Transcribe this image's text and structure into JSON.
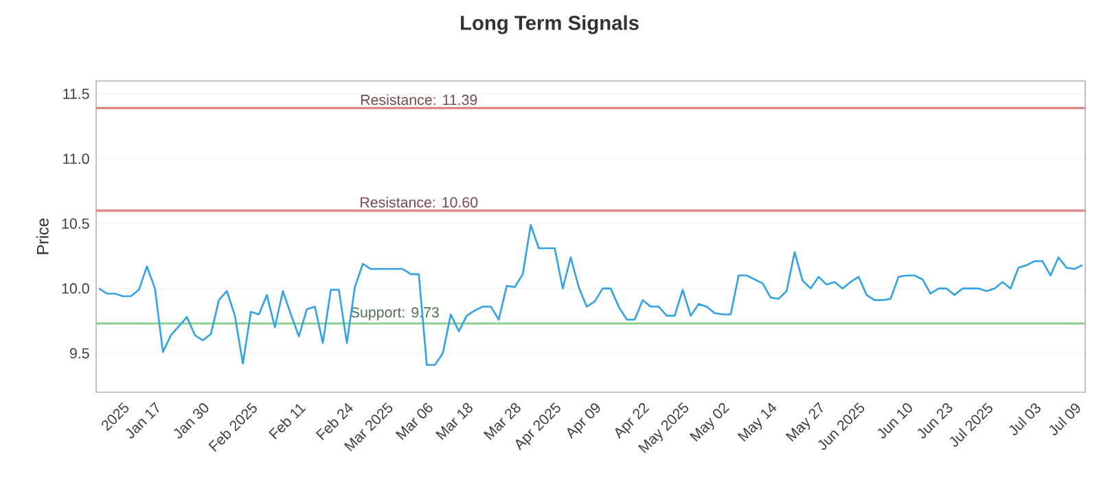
{
  "chart_data": {
    "type": "line",
    "title": "Long Term Signals",
    "ylabel": "Price",
    "categories": [
      null,
      null,
      null,
      "2025",
      null,
      null,
      null,
      "Jan 17",
      null,
      null,
      null,
      null,
      null,
      "Jan 30",
      null,
      null,
      null,
      null,
      null,
      "Feb 2025",
      null,
      null,
      null,
      null,
      null,
      "Feb 11",
      null,
      null,
      null,
      null,
      null,
      "Feb 24",
      null,
      null,
      null,
      null,
      "Mar 2025",
      null,
      null,
      null,
      null,
      "Mar 06",
      null,
      null,
      null,
      null,
      "Mar 18",
      null,
      null,
      null,
      null,
      null,
      "Mar 28",
      null,
      null,
      null,
      null,
      "Apr 2025",
      null,
      null,
      null,
      null,
      "Apr 09",
      null,
      null,
      null,
      null,
      null,
      "Apr 22",
      null,
      null,
      null,
      null,
      "May 2025",
      null,
      null,
      null,
      null,
      "May 02",
      null,
      null,
      null,
      null,
      null,
      "May 14",
      null,
      null,
      null,
      null,
      null,
      "May 27",
      null,
      null,
      null,
      null,
      "Jun 2025",
      null,
      null,
      null,
      null,
      null,
      "Jun 10",
      null,
      null,
      null,
      null,
      "Jun 23",
      null,
      null,
      null,
      null,
      "Jul 2025",
      null,
      null,
      null,
      null,
      null,
      "Jul 03",
      null,
      null,
      null,
      null,
      "Jul 09",
      null
    ],
    "series": [
      {
        "color": "#35a2e6",
        "values": [
          10.0,
          9.96,
          9.96,
          9.94,
          9.94,
          9.99,
          10.17,
          10.0,
          9.51,
          9.64,
          9.71,
          9.78,
          9.64,
          9.6,
          9.65,
          9.91,
          9.98,
          9.79,
          9.42,
          9.82,
          9.8,
          9.95,
          9.7,
          9.98,
          9.8,
          9.63,
          9.84,
          9.86,
          9.58,
          9.99,
          9.99,
          9.58,
          10.01,
          10.19,
          10.15,
          10.15,
          10.15,
          10.15,
          10.15,
          10.11,
          10.11,
          9.41,
          9.41,
          9.5,
          9.8,
          9.67,
          9.79,
          9.83,
          9.86,
          9.86,
          9.76,
          10.02,
          10.01,
          10.11,
          10.49,
          10.31,
          10.31,
          10.31,
          10.0,
          10.24,
          10.01,
          9.86,
          9.9,
          10.0,
          10.0,
          9.86,
          9.76,
          9.76,
          9.91,
          9.86,
          9.86,
          9.79,
          9.79,
          9.99,
          9.79,
          9.88,
          9.86,
          9.81,
          9.8,
          9.8,
          10.1,
          10.1,
          10.07,
          10.04,
          9.93,
          9.92,
          9.98,
          10.28,
          10.06,
          10.0,
          10.09,
          10.03,
          10.05,
          10.0,
          10.05,
          10.09,
          9.95,
          9.91,
          9.91,
          9.92,
          10.09,
          10.1,
          10.1,
          10.07,
          9.96,
          10.0,
          10.0,
          9.95,
          10.0,
          10.0,
          10.0,
          9.98,
          10.0,
          10.05,
          10.0,
          10.16,
          10.18,
          10.21,
          10.21,
          10.1,
          10.24,
          10.16,
          10.15,
          10.18
        ]
      }
    ],
    "ylim": [
      9.2,
      11.6
    ],
    "yticks": [
      9.5,
      {
        "value": 10.0,
        "label": "10.0"
      },
      10.5,
      {
        "value": 11.0,
        "label": "11.0"
      },
      11.5
    ],
    "grid": "y",
    "ref_lines": [
      {
        "axis": "y",
        "value": 11.39,
        "label": "Resistance: 11.39",
        "color": "#e08585"
      },
      {
        "axis": "y",
        "value": 10.6,
        "label": "Resistance: 10.60",
        "color": "#e08585"
      },
      {
        "axis": "y",
        "value": 9.73,
        "label": "Support: 9.73",
        "color": "#8fd08f"
      }
    ]
  }
}
